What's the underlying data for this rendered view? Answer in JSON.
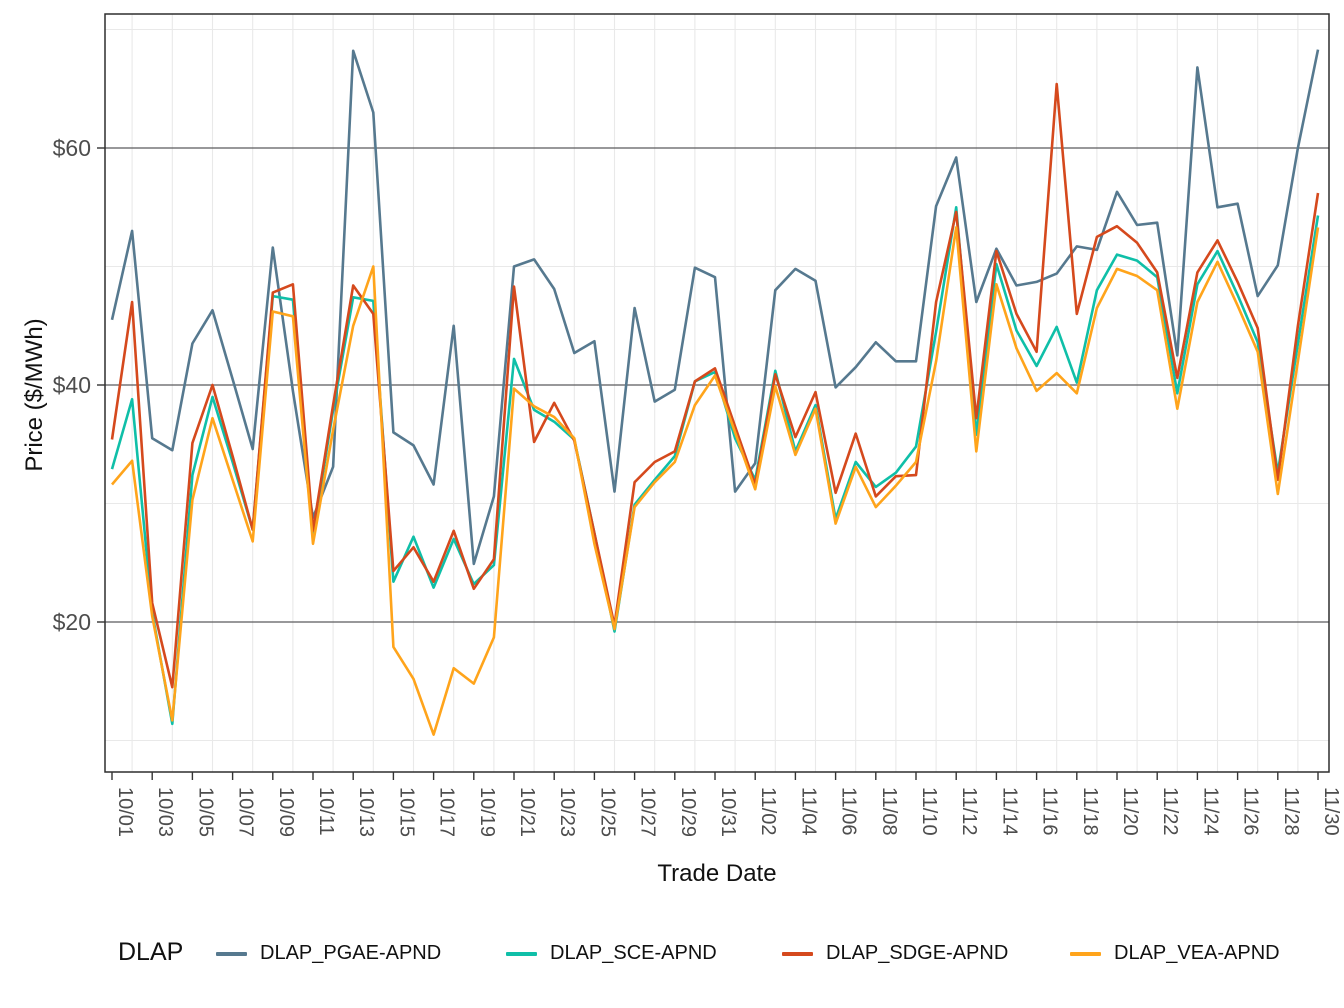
{
  "chart_data": {
    "type": "line",
    "title": "",
    "xlabel": "Trade Date",
    "ylabel": "Price ($/MWh)",
    "legend_title": "DLAP",
    "legend_position": "bottom",
    "grid": "major-y dark, minor-y light, minor-x light between ticks",
    "ylim": [
      7.35,
      71.3
    ],
    "y_ticks": [
      {
        "v": 20,
        "label": "$20"
      },
      {
        "v": 40,
        "label": "$40"
      },
      {
        "v": 60,
        "label": "$60"
      }
    ],
    "y_minor": [
      10,
      30,
      50,
      70
    ],
    "x_tick_every_days": 2,
    "dates": [
      "10/01",
      "10/02",
      "10/03",
      "10/04",
      "10/05",
      "10/06",
      "10/07",
      "10/08",
      "10/09",
      "10/10",
      "10/11",
      "10/12",
      "10/13",
      "10/14",
      "10/15",
      "10/16",
      "10/17",
      "10/18",
      "10/19",
      "10/20",
      "10/21",
      "10/22",
      "10/23",
      "10/24",
      "10/25",
      "10/26",
      "10/27",
      "10/28",
      "10/29",
      "10/30",
      "10/31",
      "11/01",
      "11/02",
      "11/03",
      "11/04",
      "11/05",
      "11/06",
      "11/07",
      "11/08",
      "11/09",
      "11/10",
      "11/11",
      "11/12",
      "11/13",
      "11/14",
      "11/15",
      "11/16",
      "11/17",
      "11/18",
      "11/19",
      "11/20",
      "11/21",
      "11/22",
      "11/23",
      "11/24",
      "11/25",
      "11/26",
      "11/27",
      "11/28",
      "11/29",
      "11/30"
    ],
    "series": [
      {
        "name": "DLAP_PGAE-APND",
        "color": "#56798F",
        "values": [
          45.5,
          53.0,
          35.5,
          34.5,
          43.5,
          46.3,
          40.5,
          34.6,
          51.6,
          39.5,
          28.8,
          33.1,
          68.2,
          63.0,
          36.0,
          34.9,
          31.6,
          45.0,
          24.9,
          30.6,
          50.0,
          50.6,
          48.1,
          42.7,
          43.7,
          31.0,
          46.5,
          38.6,
          39.6,
          49.9,
          49.1,
          31.0,
          33.4,
          48.0,
          49.8,
          48.8,
          39.8,
          41.5,
          43.6,
          42.0,
          42.0,
          55.1,
          59.2,
          47.0,
          51.5,
          48.4,
          48.7,
          49.4,
          51.7,
          51.4,
          56.3,
          53.5,
          53.7,
          42.5,
          66.8,
          55.0,
          55.3,
          47.5,
          50.1,
          60.0,
          68.3
        ]
      },
      {
        "name": "DLAP_SCE-APND",
        "color": "#0FBFA8",
        "values": [
          32.9,
          38.8,
          20.8,
          11.4,
          32.4,
          39.0,
          33.5,
          27.8,
          47.5,
          47.2,
          27.3,
          37.9,
          47.4,
          47.1,
          23.4,
          27.2,
          22.9,
          27.0,
          23.2,
          24.8,
          42.2,
          37.9,
          36.9,
          35.4,
          27.5,
          19.2,
          29.9,
          32.0,
          34.0,
          40.3,
          41.1,
          35.5,
          32.0,
          41.2,
          34.4,
          38.3,
          28.7,
          33.5,
          31.4,
          32.6,
          34.8,
          44.5,
          55.0,
          35.8,
          50.2,
          44.6,
          41.6,
          44.9,
          40.2,
          48.0,
          51.0,
          50.5,
          49.1,
          39.3,
          48.5,
          51.3,
          47.6,
          43.6,
          32.6,
          43.5,
          54.3
        ]
      },
      {
        "name": "DLAP_SDGE-APND",
        "color": "#D5491D",
        "values": [
          35.4,
          47.0,
          21.6,
          14.5,
          35.1,
          40.0,
          34.0,
          27.8,
          47.8,
          48.5,
          27.7,
          38.3,
          48.4,
          46.0,
          24.3,
          26.3,
          23.4,
          27.7,
          22.8,
          25.3,
          48.3,
          35.2,
          38.5,
          35.3,
          27.5,
          19.7,
          31.8,
          33.5,
          34.4,
          40.3,
          41.4,
          36.5,
          31.6,
          40.9,
          35.6,
          39.4,
          30.9,
          35.9,
          30.6,
          32.3,
          32.4,
          47.0,
          54.6,
          37.2,
          51.3,
          46.0,
          42.8,
          65.4,
          46.0,
          52.5,
          53.4,
          52.0,
          49.5,
          40.6,
          49.5,
          52.2,
          48.7,
          44.8,
          32.0,
          45.0,
          56.2
        ]
      },
      {
        "name": "DLAP_VEA-APND",
        "color": "#FFA41B",
        "values": [
          31.6,
          33.6,
          20.5,
          11.7,
          30.3,
          37.2,
          32.0,
          26.8,
          46.2,
          45.8,
          26.6,
          36.2,
          45.0,
          50.0,
          17.9,
          15.2,
          10.5,
          16.1,
          14.8,
          18.7,
          39.7,
          38.2,
          37.3,
          35.5,
          26.6,
          19.4,
          29.7,
          31.8,
          33.5,
          38.3,
          40.8,
          36.0,
          31.2,
          39.9,
          34.1,
          38.0,
          28.3,
          33.1,
          29.7,
          31.5,
          33.5,
          42.0,
          53.3,
          34.4,
          48.5,
          43.1,
          39.5,
          41.0,
          39.3,
          46.5,
          49.8,
          49.2,
          48.0,
          38.0,
          47.0,
          50.4,
          46.7,
          42.8,
          30.8,
          42.0,
          53.3
        ]
      }
    ]
  }
}
